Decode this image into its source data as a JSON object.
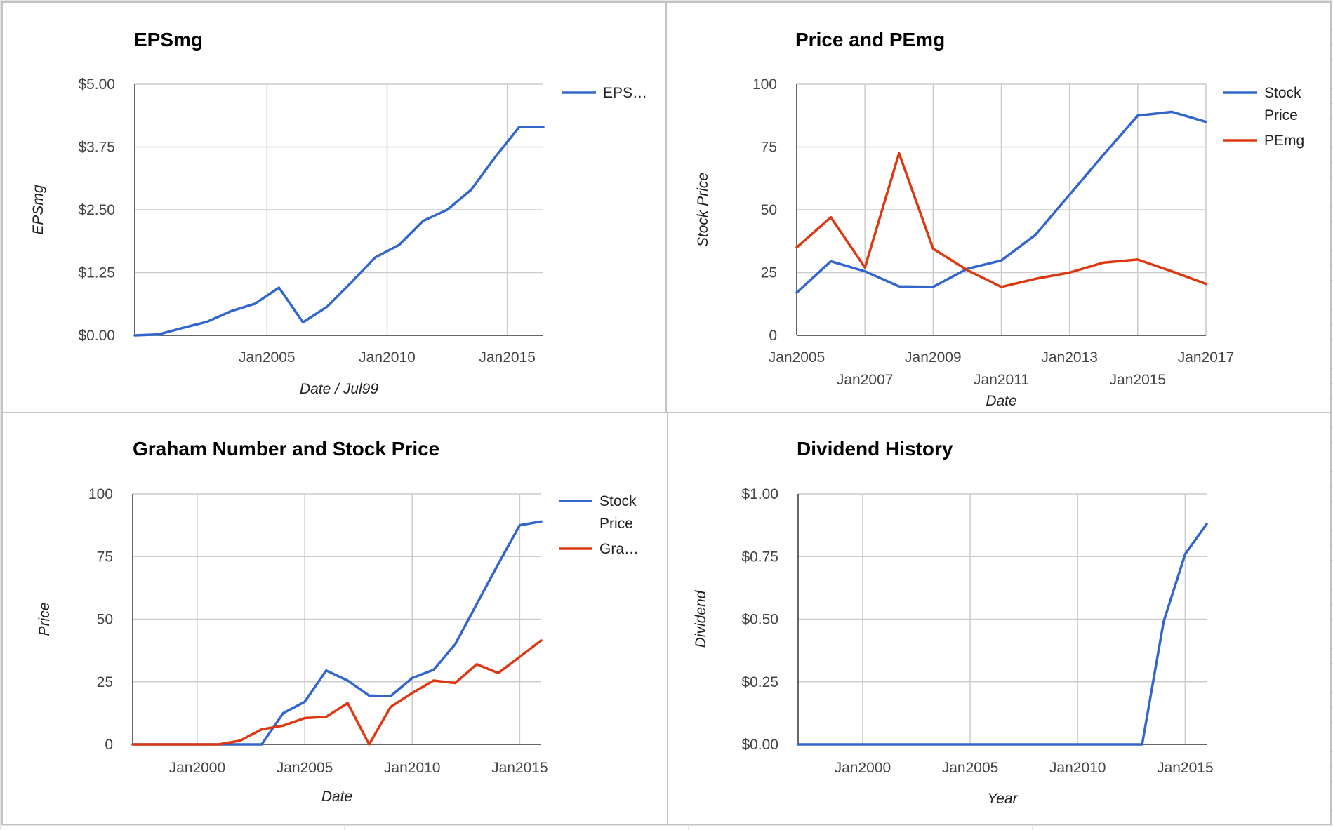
{
  "colors": {
    "blue": "#3366cc",
    "red": "#dc3912",
    "grid": "#cccccc"
  },
  "chart_data": [
    {
      "id": "eps",
      "type": "line",
      "title": "EPSmg",
      "xlabel": "Date / Jul99",
      "ylabel": "EPSmg",
      "xlim": [
        1999.5,
        2016.5
      ],
      "ylim": [
        0,
        5
      ],
      "x_tick_labels": [
        {
          "x": 2005,
          "label": "Jan2005"
        },
        {
          "x": 2010,
          "label": "Jan2010"
        },
        {
          "x": 2015,
          "label": "Jan2015"
        }
      ],
      "y_ticks": [
        0,
        1.25,
        2.5,
        3.75,
        5
      ],
      "y_tick_labels": [
        "$0.00",
        "$1.25",
        "$2.50",
        "$3.75",
        "$5.00"
      ],
      "grid": true,
      "legend": "right",
      "series": [
        {
          "name": "EPS…",
          "color": "blue",
          "x": [
            1999.5,
            2000.5,
            2001.5,
            2002.5,
            2003.5,
            2004.5,
            2005.5,
            2006.5,
            2007.5,
            2008.5,
            2009.5,
            2010.5,
            2011.5,
            2012.5,
            2013.5,
            2014.5,
            2015.5,
            2016.5
          ],
          "values": [
            0,
            0.02,
            0.15,
            0.27,
            0.48,
            0.63,
            0.95,
            0.26,
            0.57,
            1.05,
            1.55,
            1.8,
            2.28,
            2.5,
            2.9,
            3.55,
            4.15,
            4.15
          ]
        }
      ]
    },
    {
      "id": "price-pe",
      "type": "line",
      "title": "Price and PEmg",
      "xlabel": "Date",
      "ylabel": "Stock Price",
      "xlim": [
        2005,
        2017
      ],
      "ylim": [
        0,
        100
      ],
      "x_tick_labels": [
        {
          "x": 2005,
          "label": "Jan2005",
          "row": 0
        },
        {
          "x": 2007,
          "label": "Jan2007",
          "row": 1
        },
        {
          "x": 2009,
          "label": "Jan2009",
          "row": 0
        },
        {
          "x": 2011,
          "label": "Jan2011",
          "row": 1
        },
        {
          "x": 2013,
          "label": "Jan2013",
          "row": 0
        },
        {
          "x": 2015,
          "label": "Jan2015",
          "row": 1
        },
        {
          "x": 2017,
          "label": "Jan2017",
          "row": 0
        }
      ],
      "y_ticks": [
        0,
        25,
        50,
        75,
        100
      ],
      "y_tick_labels": [
        "0",
        "25",
        "50",
        "75",
        "100"
      ],
      "grid": true,
      "legend": "right",
      "series": [
        {
          "name": "Stock Price",
          "color": "blue",
          "x": [
            2005,
            2006,
            2007,
            2008,
            2009,
            2010,
            2011,
            2012,
            2013,
            2014,
            2015,
            2016,
            2017
          ],
          "values": [
            17,
            29.5,
            25.5,
            19.5,
            19.3,
            26.5,
            29.8,
            40,
            56,
            72,
            87.5,
            89,
            85
          ]
        },
        {
          "name": "PEmg",
          "color": "red",
          "x": [
            2005,
            2006,
            2007,
            2008,
            2009,
            2010,
            2011,
            2012,
            2013,
            2014,
            2015,
            2016,
            2017
          ],
          "values": [
            35,
            47,
            27,
            72.5,
            34.5,
            26,
            19.3,
            22.5,
            25,
            29,
            30.2,
            25.5,
            20.5
          ]
        }
      ]
    },
    {
      "id": "graham",
      "type": "line",
      "title": "Graham Number and Stock Price",
      "xlabel": "Date",
      "ylabel": "Price",
      "xlim": [
        1997,
        2016
      ],
      "ylim": [
        0,
        100
      ],
      "x_tick_labels": [
        {
          "x": 2000,
          "label": "Jan2000"
        },
        {
          "x": 2005,
          "label": "Jan2005"
        },
        {
          "x": 2010,
          "label": "Jan2010"
        },
        {
          "x": 2015,
          "label": "Jan2015"
        }
      ],
      "y_ticks": [
        0,
        25,
        50,
        75,
        100
      ],
      "y_tick_labels": [
        "0",
        "25",
        "50",
        "75",
        "100"
      ],
      "grid": true,
      "legend": "right",
      "series": [
        {
          "name": "Stock Price",
          "color": "blue",
          "x": [
            1997,
            1998,
            1999,
            2000,
            2001,
            2002,
            2003,
            2004,
            2005,
            2006,
            2007,
            2008,
            2009,
            2010,
            2011,
            2012,
            2013,
            2014,
            2015,
            2016
          ],
          "values": [
            0,
            0,
            0,
            0,
            0,
            0,
            0,
            12.5,
            17,
            29.5,
            25.5,
            19.5,
            19.3,
            26.5,
            29.8,
            40,
            56,
            72,
            87.5,
            89
          ]
        },
        {
          "name": "Gra…",
          "color": "red",
          "x": [
            1997,
            1998,
            1999,
            2000,
            2001,
            2002,
            2003,
            2004,
            2005,
            2006,
            2007,
            2008,
            2009,
            2010,
            2011,
            2012,
            2013,
            2014,
            2015,
            2016
          ],
          "values": [
            0,
            0,
            0,
            0,
            0,
            1.5,
            6,
            7.5,
            10.5,
            11,
            16.5,
            0,
            15,
            20.5,
            25.5,
            24.5,
            32,
            28.5,
            35,
            41.5
          ]
        }
      ]
    },
    {
      "id": "dividend",
      "type": "line",
      "title": "Dividend History",
      "xlabel": "Year",
      "ylabel": "Dividend",
      "xlim": [
        1997,
        2016
      ],
      "ylim": [
        0,
        1
      ],
      "x_tick_labels": [
        {
          "x": 2000,
          "label": "Jan2000"
        },
        {
          "x": 2005,
          "label": "Jan2005"
        },
        {
          "x": 2010,
          "label": "Jan2010"
        },
        {
          "x": 2015,
          "label": "Jan2015"
        }
      ],
      "y_ticks": [
        0,
        0.25,
        0.5,
        0.75,
        1
      ],
      "y_tick_labels": [
        "$0.00",
        "$0.25",
        "$0.50",
        "$0.75",
        "$1.00"
      ],
      "grid": true,
      "legend": "none",
      "series": [
        {
          "name": "",
          "color": "blue",
          "x": [
            1997,
            1998,
            1999,
            2000,
            2001,
            2002,
            2003,
            2004,
            2005,
            2006,
            2007,
            2008,
            2009,
            2010,
            2011,
            2012,
            2013,
            2014,
            2015,
            2016
          ],
          "values": [
            0,
            0,
            0,
            0,
            0,
            0,
            0,
            0,
            0,
            0,
            0,
            0,
            0,
            0,
            0,
            0,
            0,
            0.49,
            0.76,
            0.88
          ]
        }
      ]
    }
  ]
}
